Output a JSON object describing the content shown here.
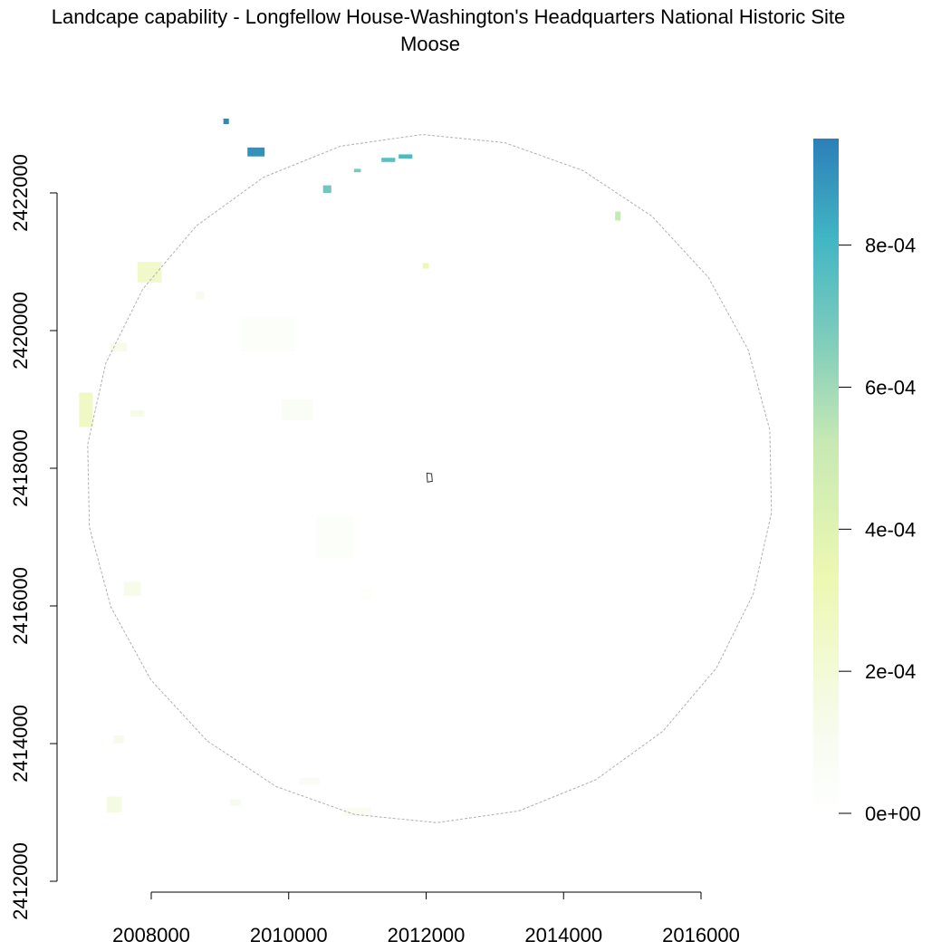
{
  "title": {
    "line1": "Landcape capability - Longfellow House-Washington's Headquarters National Historic Site",
    "line2": "Moose"
  },
  "chart_data": {
    "type": "heatmap",
    "x_axis": {
      "range": [
        2006800,
        2017500
      ],
      "ticks": [
        2008000,
        2010000,
        2012000,
        2014000,
        2016000
      ],
      "tick_labels": [
        "2008000",
        "2010000",
        "2012000",
        "2014000",
        "2016000"
      ]
    },
    "y_axis": {
      "range": [
        2411900,
        2423400
      ],
      "ticks": [
        2412000,
        2414000,
        2416000,
        2418000,
        2420000,
        2422000
      ],
      "tick_labels": [
        "2412000",
        "2414000",
        "2416000",
        "2418000",
        "2420000",
        "2422000"
      ]
    },
    "legend": {
      "placement": "right",
      "min": 0,
      "max": 0.00095,
      "ticks": [
        0,
        0.0002,
        0.0004,
        0.0006,
        0.0008
      ],
      "tick_labels": [
        "0e+00",
        "2e-04",
        "4e-04",
        "6e-04",
        "8e-04"
      ],
      "colors": [
        "#ffffff",
        "#f7fbef",
        "#edf8b1",
        "#c7e9b4",
        "#7fcdbb",
        "#41b6c4",
        "#2c7fb8"
      ]
    },
    "buffer_circle": {
      "center": [
        2012050,
        2417850
      ],
      "radius": 5000,
      "style": "dashed",
      "color": "#b0b0b0"
    },
    "site_polygon": [
      [
        2012020,
        2417800
      ],
      [
        2012090,
        2417810
      ],
      [
        2012080,
        2417920
      ],
      [
        2012010,
        2417930
      ]
    ],
    "patches": [
      {
        "x": 2009050,
        "y": 2423000,
        "w": 80,
        "h": 80,
        "v": 0.00093
      },
      {
        "x": 2009400,
        "y": 2422530,
        "w": 250,
        "h": 130,
        "v": 0.0009
      },
      {
        "x": 2011600,
        "y": 2422500,
        "w": 200,
        "h": 60,
        "v": 0.00078
      },
      {
        "x": 2011350,
        "y": 2422450,
        "w": 200,
        "h": 60,
        "v": 0.00075
      },
      {
        "x": 2010500,
        "y": 2422000,
        "w": 120,
        "h": 110,
        "v": 0.0007
      },
      {
        "x": 2010950,
        "y": 2422300,
        "w": 100,
        "h": 50,
        "v": 0.00068
      },
      {
        "x": 2014750,
        "y": 2421600,
        "w": 80,
        "h": 130,
        "v": 0.00052
      },
      {
        "x": 2011950,
        "y": 2420900,
        "w": 90,
        "h": 80,
        "v": 0.00033
      },
      {
        "x": 2007800,
        "y": 2420700,
        "w": 350,
        "h": 300,
        "v": 0.00024
      },
      {
        "x": 2006950,
        "y": 2418600,
        "w": 200,
        "h": 500,
        "v": 0.00026
      },
      {
        "x": 2007400,
        "y": 2419700,
        "w": 250,
        "h": 120,
        "v": 0.00013
      },
      {
        "x": 2007700,
        "y": 2418750,
        "w": 200,
        "h": 90,
        "v": 0.00015
      },
      {
        "x": 2009900,
        "y": 2418700,
        "w": 450,
        "h": 300,
        "v": 7e-05
      },
      {
        "x": 2009300,
        "y": 2419700,
        "w": 800,
        "h": 500,
        "v": 4e-05
      },
      {
        "x": 2007600,
        "y": 2416150,
        "w": 250,
        "h": 200,
        "v": 0.00013
      },
      {
        "x": 2007450,
        "y": 2414000,
        "w": 150,
        "h": 120,
        "v": 0.00012
      },
      {
        "x": 2007350,
        "y": 2413000,
        "w": 220,
        "h": 230,
        "v": 0.00016
      },
      {
        "x": 2009150,
        "y": 2413100,
        "w": 150,
        "h": 100,
        "v": 0.00011
      },
      {
        "x": 2010400,
        "y": 2416700,
        "w": 550,
        "h": 600,
        "v": 4e-05
      },
      {
        "x": 2011050,
        "y": 2416100,
        "w": 150,
        "h": 150,
        "v": 4e-05
      },
      {
        "x": 2010150,
        "y": 2413400,
        "w": 300,
        "h": 100,
        "v": 8e-05
      },
      {
        "x": 2010800,
        "y": 2412950,
        "w": 400,
        "h": 120,
        "v": 9e-05
      },
      {
        "x": 2008650,
        "y": 2420450,
        "w": 120,
        "h": 120,
        "v": 0.0001
      }
    ]
  }
}
